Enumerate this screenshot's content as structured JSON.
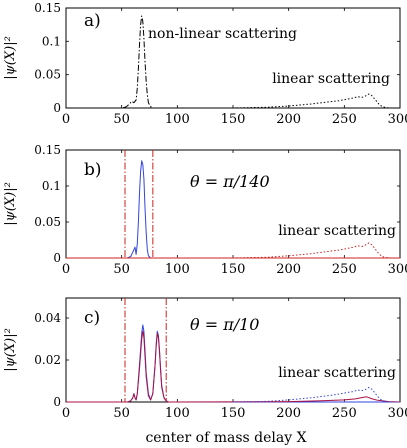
{
  "xlabel": "center of mass delay X",
  "chart_data": [
    {
      "type": "line",
      "panel": "a)",
      "ylabel": "|ψ(X)|²",
      "xlim": [
        0,
        300
      ],
      "ylim": [
        0,
        0.15
      ],
      "x_ticks": [
        "0",
        "50",
        "100",
        "150",
        "200",
        "250",
        "300"
      ],
      "y_ticks": [
        "0",
        "0.05",
        "0.1",
        "0.15"
      ],
      "annotations": [
        "non-linear scattering",
        "linear scattering"
      ],
      "series": [
        {
          "style": "dashdot",
          "color": "#000000",
          "x": [
            0,
            50,
            53,
            55,
            57,
            59,
            61,
            63,
            64,
            65,
            66,
            67,
            68,
            69,
            70,
            71,
            72,
            73,
            74,
            76,
            78,
            80,
            100,
            150,
            300
          ],
          "y": [
            0,
            0,
            0.001,
            0.003,
            0.006,
            0.01,
            0.008,
            0.012,
            0.03,
            0.06,
            0.095,
            0.125,
            0.138,
            0.13,
            0.105,
            0.07,
            0.04,
            0.02,
            0.008,
            0.002,
            0,
            0,
            0,
            0,
            0
          ]
        },
        {
          "style": "dotted",
          "color": "#000000",
          "x": [
            150,
            180,
            200,
            220,
            235,
            245,
            252,
            258,
            262,
            266,
            269,
            272,
            275,
            278,
            281,
            284,
            288,
            292,
            300
          ],
          "y": [
            0,
            0.001,
            0.003,
            0.006,
            0.009,
            0.011,
            0.013,
            0.015,
            0.017,
            0.016,
            0.018,
            0.021,
            0.018,
            0.012,
            0.006,
            0.002,
            0.0005,
            0,
            0
          ]
        }
      ]
    },
    {
      "type": "line",
      "panel": "b)",
      "ylabel": "|ψ(X)|²",
      "title": "θ = π/140",
      "xlim": [
        0,
        300
      ],
      "ylim": [
        0,
        0.15
      ],
      "x_ticks": [
        "0",
        "50",
        "100",
        "150",
        "200",
        "250",
        "300"
      ],
      "y_ticks": [
        "0",
        "0.05",
        "0.1",
        "0.15"
      ],
      "annotations": [
        "linear scattering"
      ],
      "vlines": [
        53,
        78
      ],
      "series": [
        {
          "style": "solid",
          "color": "#3344dd",
          "x": [
            0,
            55,
            58,
            60,
            62,
            63,
            64,
            65,
            66,
            67,
            68,
            69,
            70,
            71,
            72,
            73,
            74,
            76,
            78,
            150,
            300
          ],
          "y": [
            0,
            0,
            0.002,
            0.008,
            0.015,
            0.005,
            0.02,
            0.05,
            0.09,
            0.12,
            0.135,
            0.13,
            0.11,
            0.07,
            0.035,
            0.012,
            0.003,
            0,
            0,
            0,
            0
          ]
        },
        {
          "style": "solid",
          "color": "#cc2222",
          "x": [
            0,
            53,
            78,
            150,
            200,
            230,
            250,
            260,
            265,
            270,
            280,
            300
          ],
          "y": [
            0,
            0,
            0,
            0,
            0,
            0,
            0,
            0,
            0,
            0,
            0,
            0
          ]
        },
        {
          "style": "dotted",
          "color": "#cc2222",
          "x": [
            150,
            180,
            200,
            220,
            235,
            245,
            252,
            258,
            262,
            266,
            269,
            272,
            275,
            278,
            281,
            284,
            288,
            292,
            300
          ],
          "y": [
            0,
            0.001,
            0.003,
            0.006,
            0.009,
            0.011,
            0.013,
            0.015,
            0.017,
            0.016,
            0.018,
            0.021,
            0.018,
            0.012,
            0.006,
            0.002,
            0.0005,
            0,
            0
          ]
        }
      ]
    },
    {
      "type": "line",
      "panel": "c)",
      "ylabel": "|ψ(X)|²",
      "title": "θ = π/10",
      "xlim": [
        0,
        300
      ],
      "ylim": [
        0,
        0.05
      ],
      "x_ticks": [
        "0",
        "50",
        "100",
        "150",
        "200",
        "250",
        "300"
      ],
      "y_ticks": [
        "0",
        "0.02",
        "0.04"
      ],
      "annotations": [
        "linear scattering"
      ],
      "vlines": [
        53,
        90
      ],
      "series": [
        {
          "style": "solid",
          "color": "#3344dd",
          "x": [
            0,
            55,
            58,
            60,
            61,
            62,
            63,
            64,
            66,
            68,
            69,
            70,
            71,
            72,
            74,
            76,
            78,
            80,
            81,
            82,
            83,
            84,
            85,
            86,
            88,
            90,
            92,
            95,
            100,
            200,
            300
          ],
          "y": [
            0,
            0,
            0.0005,
            0.002,
            0.004,
            0.002,
            0.001,
            0.004,
            0.018,
            0.033,
            0.037,
            0.034,
            0.025,
            0.014,
            0.004,
            0.001,
            0.004,
            0.018,
            0.028,
            0.034,
            0.032,
            0.025,
            0.016,
            0.008,
            0.002,
            0.0005,
            0,
            0,
            0,
            0,
            0
          ]
        },
        {
          "style": "solid",
          "color": "#aa1144",
          "x": [
            0,
            55,
            58,
            60,
            61,
            62,
            63,
            64,
            66,
            68,
            69,
            70,
            71,
            72,
            74,
            76,
            78,
            80,
            81,
            82,
            83,
            84,
            85,
            86,
            88,
            90,
            92,
            95,
            100,
            200,
            230,
            250,
            260,
            265,
            270,
            275,
            280,
            290,
            300
          ],
          "y": [
            0,
            0,
            0.0005,
            0.002,
            0.004,
            0.002,
            0.001,
            0.004,
            0.016,
            0.03,
            0.034,
            0.031,
            0.022,
            0.012,
            0.003,
            0.001,
            0.004,
            0.018,
            0.027,
            0.033,
            0.031,
            0.024,
            0.015,
            0.007,
            0.002,
            0.0005,
            0,
            0,
            0,
            0.0002,
            0.0006,
            0.001,
            0.0015,
            0.002,
            0.0025,
            0.0015,
            0.0008,
            0.0002,
            0
          ]
        },
        {
          "style": "dotted",
          "color": "#3344dd",
          "x": [
            150,
            180,
            200,
            220,
            235,
            245,
            252,
            258,
            262,
            266,
            269,
            272,
            275,
            278,
            281,
            284,
            288,
            292,
            300
          ],
          "y": [
            0,
            0.0003,
            0.001,
            0.002,
            0.003,
            0.0038,
            0.0045,
            0.005,
            0.0057,
            0.0055,
            0.006,
            0.007,
            0.006,
            0.004,
            0.002,
            0.0007,
            0.0002,
            0,
            0
          ]
        }
      ]
    }
  ]
}
